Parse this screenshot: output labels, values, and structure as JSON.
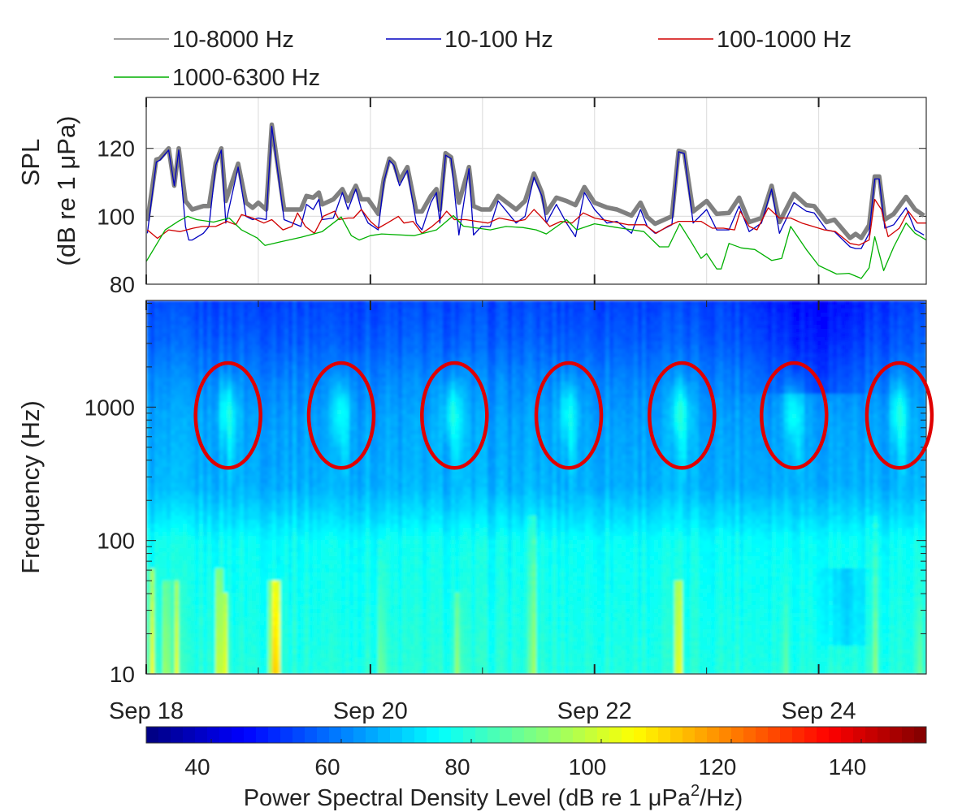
{
  "chart_data": [
    {
      "type": "line",
      "title": "",
      "ylabel_line1": "SPL",
      "ylabel_line2": "(dB re 1 μPa)",
      "xlim_days": [
        0,
        6.96
      ],
      "ylim": [
        80,
        135
      ],
      "yticks": [
        80,
        100,
        120
      ],
      "grid": true,
      "legend_position": "top",
      "series": [
        {
          "name": "10-8000 Hz",
          "color": "#808080",
          "x": [
            0.01,
            0.09,
            0.12,
            0.2,
            0.25,
            0.29,
            0.35,
            0.41,
            0.51,
            0.56,
            0.62,
            0.67,
            0.71,
            0.82,
            0.89,
            0.95,
            1.0,
            1.07,
            1.12,
            1.23,
            1.38,
            1.43,
            1.49,
            1.54,
            1.57,
            1.67,
            1.75,
            1.8,
            1.87,
            1.92,
            1.98,
            2.07,
            2.12,
            2.17,
            2.21,
            2.26,
            2.33,
            2.41,
            2.46,
            2.54,
            2.59,
            2.62,
            2.67,
            2.72,
            2.79,
            2.88,
            2.92,
            2.99,
            3.07,
            3.14,
            3.3,
            3.38,
            3.46,
            3.53,
            3.57,
            3.66,
            3.75,
            3.83,
            3.91,
            4.0,
            4.11,
            4.2,
            4.33,
            4.41,
            4.47,
            4.54,
            4.69,
            4.75,
            4.8,
            4.88,
            5.0,
            5.09,
            5.2,
            5.29,
            5.38,
            5.49,
            5.58,
            5.65,
            5.78,
            5.89,
            5.96,
            6.07,
            6.14,
            6.28,
            6.33,
            6.38,
            6.45,
            6.5,
            6.54,
            6.59,
            6.67,
            6.78,
            6.86,
            6.94
          ],
          "y": [
            98.6,
            116.7,
            117,
            120,
            109,
            120,
            104.5,
            102,
            103,
            103,
            115.7,
            120,
            104.5,
            115.5,
            104,
            102.5,
            104,
            102,
            127,
            102,
            102,
            106,
            105.5,
            107,
            103.5,
            105,
            108,
            104.5,
            109,
            105,
            105,
            100.7,
            111,
            117,
            115.7,
            110.5,
            114.5,
            101.4,
            101.4,
            106,
            108,
            102,
            118.6,
            117.4,
            104,
            114.5,
            103,
            102,
            102,
            106,
            102,
            104.5,
            112.6,
            107,
            101,
            105.5,
            104.5,
            103.3,
            108.6,
            104,
            102.6,
            102,
            100.2,
            104,
            99.8,
            97.8,
            100,
            119.3,
            118.8,
            101.4,
            104.5,
            100.7,
            101,
            105.5,
            98.3,
            99.5,
            109,
            98.3,
            106.6,
            103.3,
            103,
            98.3,
            99,
            93.6,
            94.8,
            93.6,
            97.4,
            111.7,
            111.7,
            99,
            100.7,
            105.7,
            102,
            100.2
          ]
        },
        {
          "name": "10-100 Hz",
          "color": "#0000c0",
          "x": [
            0.01,
            0.09,
            0.12,
            0.2,
            0.25,
            0.29,
            0.35,
            0.38,
            0.41,
            0.51,
            0.56,
            0.62,
            0.67,
            0.71,
            0.82,
            0.89,
            0.95,
            1.0,
            1.07,
            1.12,
            1.23,
            1.38,
            1.43,
            1.49,
            1.54,
            1.57,
            1.67,
            1.75,
            1.8,
            1.87,
            1.92,
            1.98,
            2.07,
            2.12,
            2.17,
            2.21,
            2.26,
            2.33,
            2.41,
            2.46,
            2.54,
            2.59,
            2.62,
            2.67,
            2.72,
            2.79,
            2.88,
            2.92,
            2.99,
            3.07,
            3.14,
            3.3,
            3.38,
            3.46,
            3.53,
            3.57,
            3.66,
            3.75,
            3.83,
            3.91,
            4.0,
            4.11,
            4.2,
            4.33,
            4.41,
            4.47,
            4.54,
            4.69,
            4.75,
            4.8,
            4.88,
            5.0,
            5.09,
            5.2,
            5.29,
            5.38,
            5.49,
            5.58,
            5.65,
            5.78,
            5.89,
            5.96,
            6.07,
            6.14,
            6.28,
            6.33,
            6.38,
            6.45,
            6.5,
            6.54,
            6.59,
            6.67,
            6.78,
            6.86,
            6.94
          ],
          "y": [
            95,
            116,
            116.5,
            119.5,
            109,
            119.5,
            97,
            93,
            93,
            95,
            97,
            115,
            119.5,
            98,
            114.5,
            100,
            99,
            99.5,
            99,
            126.5,
            99,
            97,
            103.5,
            102,
            105,
            99,
            99.5,
            107,
            102,
            108,
            102,
            98,
            96,
            110,
            116.5,
            115,
            109,
            113.5,
            98,
            96,
            104,
            107,
            98,
            118,
            117,
            94.5,
            114,
            94.5,
            97,
            97,
            104.5,
            98,
            100,
            111.5,
            106,
            98,
            103.5,
            98,
            94,
            107,
            102,
            98,
            98.5,
            95,
            102,
            97,
            95,
            97.5,
            119,
            118.5,
            98,
            102,
            96,
            96,
            103,
            95.5,
            98,
            108,
            95,
            104,
            101.5,
            101,
            96,
            95.5,
            91,
            90.5,
            90.5,
            95,
            111,
            111,
            96.5,
            97.5,
            102.5,
            96,
            94.5
          ]
        },
        {
          "name": "100-1000 Hz",
          "color": "#d00000",
          "x": [
            0.01,
            0.1,
            0.2,
            0.3,
            0.42,
            0.5,
            0.62,
            0.72,
            0.8,
            0.85,
            0.95,
            1.05,
            1.12,
            1.22,
            1.3,
            1.35,
            1.42,
            1.5,
            1.58,
            1.68,
            1.72,
            1.8,
            1.85,
            1.92,
            2.0,
            2.07,
            2.15,
            2.25,
            2.3,
            2.38,
            2.46,
            2.55,
            2.62,
            2.68,
            2.75,
            2.85,
            2.95,
            3.05,
            3.15,
            3.3,
            3.38,
            3.46,
            3.52,
            3.6,
            3.7,
            3.8,
            3.9,
            4.0,
            4.15,
            4.3,
            4.45,
            4.55,
            4.65,
            4.75,
            4.85,
            4.95,
            5.05,
            5.15,
            5.25,
            5.3,
            5.38,
            5.45,
            5.55,
            5.65,
            5.75,
            5.85,
            5.95,
            6.05,
            6.15,
            6.28,
            6.36,
            6.45,
            6.5,
            6.56,
            6.62,
            6.72,
            6.8,
            6.88,
            6.96
          ],
          "y": [
            96,
            93.5,
            96,
            95.5,
            96.5,
            97,
            97,
            98.5,
            97.5,
            100.5,
            99.5,
            98,
            99,
            96,
            97,
            101,
            97,
            95,
            100,
            101.5,
            99,
            99.5,
            99.5,
            102,
            98.5,
            96.5,
            98,
            100,
            98,
            98.5,
            95,
            97,
            99,
            101.5,
            99,
            99,
            98.5,
            98,
            99.5,
            98.5,
            99,
            102,
            100,
            97,
            98.5,
            98,
            101,
            99.5,
            98.5,
            97.5,
            97.5,
            95,
            97,
            98.5,
            98.5,
            98.5,
            96.5,
            96.5,
            96,
            101.5,
            97,
            96,
            102.5,
            99.5,
            99.5,
            98,
            97,
            96,
            95.5,
            92,
            91.5,
            93,
            105,
            102,
            94,
            96.5,
            101.5,
            98,
            98
          ]
        },
        {
          "name": "1000-6300 Hz",
          "color": "#00b000",
          "x": [
            0.0,
            0.17,
            0.29,
            0.37,
            0.45,
            0.6,
            0.74,
            0.85,
            0.99,
            1.06,
            1.2,
            1.38,
            1.57,
            1.74,
            1.83,
            1.9,
            2.0,
            2.1,
            2.39,
            2.59,
            2.74,
            2.83,
            3.07,
            3.21,
            3.36,
            3.48,
            3.57,
            3.75,
            3.84,
            4.0,
            4.2,
            4.44,
            4.58,
            4.66,
            4.76,
            4.86,
            4.95,
            5.0,
            5.09,
            5.13,
            5.2,
            5.31,
            5.43,
            5.58,
            5.67,
            5.75,
            5.89,
            6.0,
            6.16,
            6.27,
            6.38,
            6.45,
            6.5,
            6.58,
            6.67,
            6.78,
            6.86,
            6.96
          ],
          "y": [
            86.7,
            96,
            98.6,
            100,
            99,
            98.3,
            99.5,
            96,
            93.6,
            91.4,
            92.5,
            93.8,
            95.5,
            99.8,
            94.3,
            93,
            94.3,
            94.8,
            94.3,
            96,
            100.2,
            97.1,
            96,
            97,
            96.7,
            96,
            94.8,
            99,
            96,
            97.8,
            96.7,
            95.5,
            91,
            91,
            97.8,
            92.6,
            87.6,
            89,
            84.5,
            84.5,
            92,
            90.7,
            90.2,
            87,
            87.6,
            97,
            90.2,
            85.5,
            83,
            83.2,
            81.7,
            84.8,
            94,
            84,
            91,
            98,
            95,
            93
          ]
        }
      ]
    },
    {
      "type": "heatmap",
      "title": "",
      "ylabel": "Frequency (Hz)",
      "yscale": "log",
      "ylim": [
        10,
        6300
      ],
      "yticks": [
        10,
        100,
        1000
      ],
      "xlim_days": [
        0,
        6.96
      ],
      "xticks": [
        {
          "day": 0,
          "label": "Sep 18"
        },
        {
          "day": 2,
          "label": "Sep 20"
        },
        {
          "day": 4,
          "label": "Sep 22"
        },
        {
          "day": 6,
          "label": "Sep 24"
        }
      ],
      "minor_xtick_days": [
        1,
        3,
        5
      ],
      "colormap": "jet",
      "colorbar": {
        "label": "Power Spectral Density Level (dB re 1 μPa",
        "label_sup": "2",
        "label_end": "/Hz)",
        "range": [
          30,
          150
        ],
        "ticks": [
          40,
          60,
          80,
          100,
          120,
          140
        ]
      },
      "background_profile": {
        "log10_freq": [
          1,
          1.3,
          1.6,
          2.0,
          2.15,
          2.4,
          2.9,
          3.2,
          3.5,
          3.8
        ],
        "level_db": [
          79,
          78,
          77,
          76,
          72,
          66,
          64,
          61,
          56,
          53
        ]
      },
      "daily_events_1khz": [
        {
          "day": 0.73,
          "level_boost_db": 14
        },
        {
          "day": 1.74,
          "level_boost_db": 13
        },
        {
          "day": 2.74,
          "level_boost_db": 14
        },
        {
          "day": 3.77,
          "level_boost_db": 13
        },
        {
          "day": 4.77,
          "level_boost_db": 14
        },
        {
          "day": 5.78,
          "level_boost_db": 14
        },
        {
          "day": 6.72,
          "level_boost_db": 14
        }
      ],
      "low_freq_bursts": [
        {
          "day": 0.05,
          "level_db": 104,
          "fmax_hz": 60
        },
        {
          "day": 0.18,
          "level_db": 100,
          "fmax_hz": 50
        },
        {
          "day": 0.27,
          "level_db": 102,
          "fmax_hz": 50
        },
        {
          "day": 0.65,
          "level_db": 108,
          "fmax_hz": 60
        },
        {
          "day": 0.7,
          "level_db": 104,
          "fmax_hz": 40
        },
        {
          "day": 1.13,
          "level_db": 118,
          "fmax_hz": 50
        },
        {
          "day": 1.17,
          "level_db": 112,
          "fmax_hz": 50
        },
        {
          "day": 2.1,
          "level_db": 92,
          "fmax_hz": 100
        },
        {
          "day": 2.78,
          "level_db": 94,
          "fmax_hz": 40
        },
        {
          "day": 3.45,
          "level_db": 98,
          "fmax_hz": 150
        },
        {
          "day": 4.75,
          "level_db": 114,
          "fmax_hz": 50
        },
        {
          "day": 5.7,
          "level_db": 88,
          "fmax_hz": 100
        },
        {
          "day": 6.5,
          "level_db": 93,
          "fmax_hz": 150
        },
        {
          "day": 6.9,
          "level_db": 88,
          "fmax_hz": 100
        }
      ],
      "annotations": [
        {
          "shape": "ellipse",
          "color": "#e00000",
          "day": 0.73,
          "f_center_hz": 766,
          "f_low_hz": 350,
          "f_high_hz": 2140,
          "half_width_days": 0.29
        },
        {
          "shape": "ellipse",
          "color": "#e00000",
          "day": 1.74,
          "f_center_hz": 766,
          "f_low_hz": 350,
          "f_high_hz": 2140,
          "half_width_days": 0.29
        },
        {
          "shape": "ellipse",
          "color": "#e00000",
          "day": 2.75,
          "f_center_hz": 766,
          "f_low_hz": 350,
          "f_high_hz": 2140,
          "half_width_days": 0.29
        },
        {
          "shape": "ellipse",
          "color": "#e00000",
          "day": 3.77,
          "f_center_hz": 766,
          "f_low_hz": 350,
          "f_high_hz": 2140,
          "half_width_days": 0.29
        },
        {
          "shape": "ellipse",
          "color": "#e00000",
          "day": 4.78,
          "f_center_hz": 766,
          "f_low_hz": 350,
          "f_high_hz": 2140,
          "half_width_days": 0.29
        },
        {
          "shape": "ellipse",
          "color": "#e00000",
          "day": 5.78,
          "f_center_hz": 766,
          "f_low_hz": 350,
          "f_high_hz": 2140,
          "half_width_days": 0.29
        },
        {
          "shape": "ellipse",
          "color": "#e00000",
          "day": 6.72,
          "f_center_hz": 766,
          "f_low_hz": 350,
          "f_high_hz": 2140,
          "half_width_days": 0.29
        }
      ]
    }
  ]
}
